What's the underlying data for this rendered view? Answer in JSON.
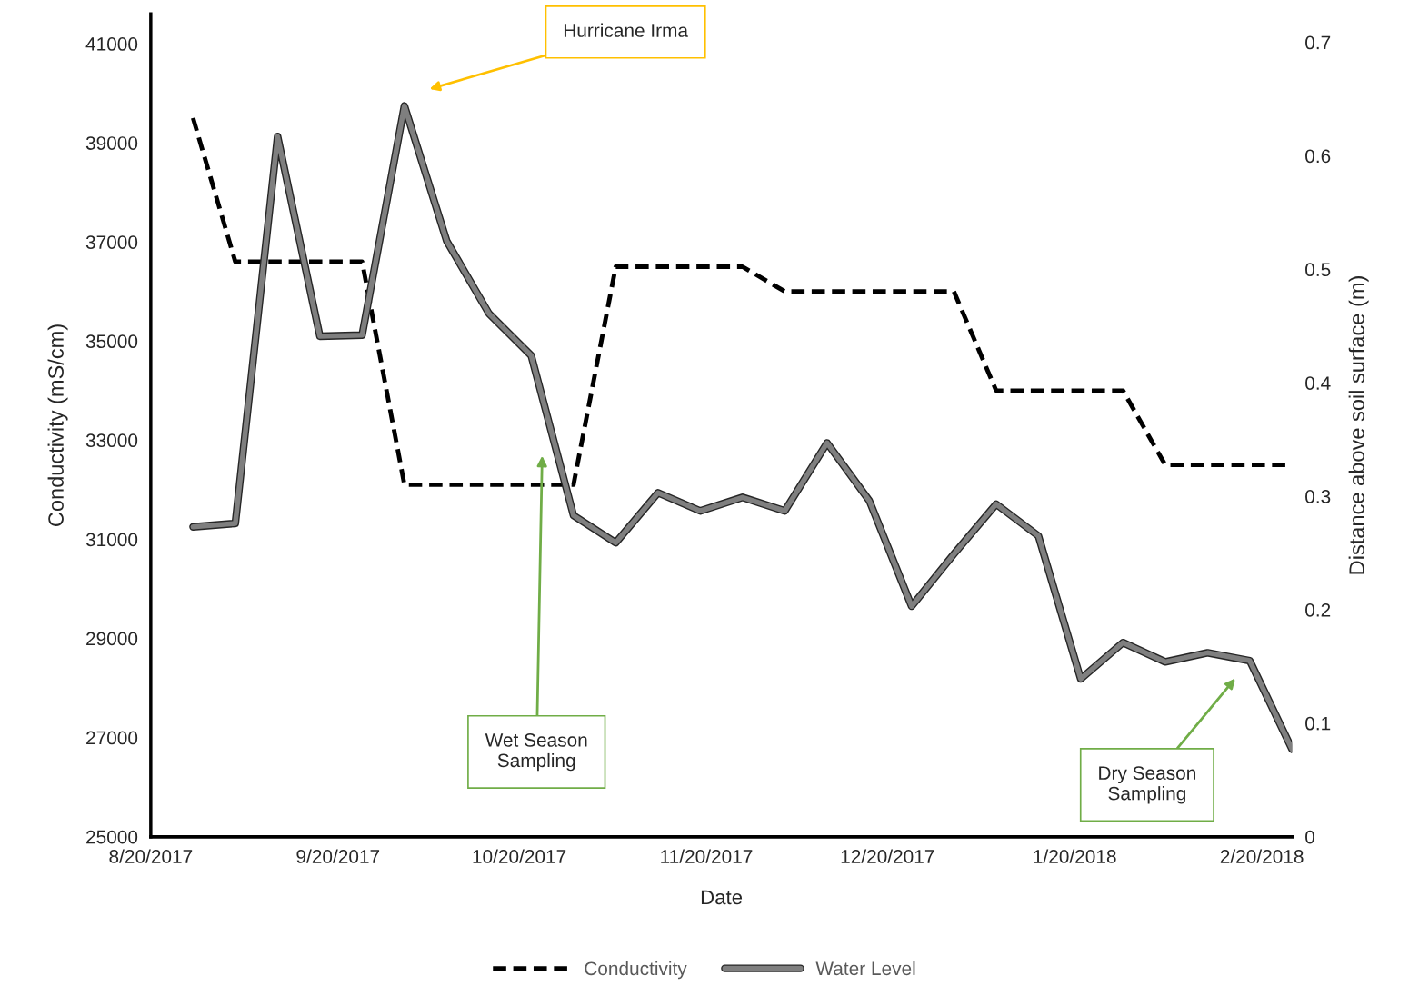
{
  "chart_data": {
    "type": "line",
    "xlabel": "Date",
    "ylabel": "Conductivity (mS/cm)",
    "y2label": "Distance above soil surface (m)",
    "xlim": [
      "2017-08-20",
      "2018-02-25"
    ],
    "xticks": [
      {
        "value": "2017-08-20",
        "label": "8/20/2017"
      },
      {
        "value": "2017-09-20",
        "label": "9/20/2017"
      },
      {
        "value": "2017-10-20",
        "label": "10/20/2017"
      },
      {
        "value": "2017-11-20",
        "label": "11/20/2017"
      },
      {
        "value": "2017-12-20",
        "label": "12/20/2017"
      },
      {
        "value": "2018-01-20",
        "label": "1/20/2018"
      },
      {
        "value": "2018-02-20",
        "label": "2/20/2018"
      }
    ],
    "ylim": [
      25000,
      41600
    ],
    "yticks": [
      25000,
      27000,
      29000,
      31000,
      33000,
      35000,
      37000,
      39000,
      41000
    ],
    "y2lim": [
      0,
      0.725
    ],
    "y2ticks": [
      0,
      0.1,
      0.2,
      0.3,
      0.4,
      0.5,
      0.6,
      0.7
    ],
    "grid": false,
    "legend": "bottom",
    "series": [
      {
        "name": "Conductivity",
        "color": "#000000",
        "line_style": "dashed",
        "x": [
          "2017-08-27",
          "2017-09-03",
          "2017-09-24",
          "2017-10-01",
          "2017-10-29",
          "2017-11-05",
          "2017-11-26",
          "2017-12-03",
          "2017-12-31",
          "2018-01-07",
          "2018-01-28",
          "2018-02-04",
          "2018-02-24"
        ],
        "values": [
          39500,
          36600,
          36600,
          32100,
          32100,
          36500,
          36500,
          36000,
          36000,
          34000,
          34000,
          32500,
          32500
        ]
      },
      {
        "name": "Water Level",
        "color": "#7f7f7f",
        "line_style": "solid",
        "axis": "y2",
        "x": [
          "2017-08-27",
          "2017-09-03",
          "2017-09-10",
          "2017-09-17",
          "2017-09-24",
          "2017-10-01",
          "2017-10-08",
          "2017-10-15",
          "2017-10-22",
          "2017-10-29",
          "2017-11-05",
          "2017-11-12",
          "2017-11-19",
          "2017-11-26",
          "2017-12-03",
          "2017-12-10",
          "2017-12-17",
          "2017-12-24",
          "2017-12-31",
          "2018-01-07",
          "2018-01-14",
          "2018-01-21",
          "2018-01-28",
          "2018-02-04",
          "2018-02-11",
          "2018-02-18",
          "2018-02-25"
        ],
        "values": [
          0.273,
          0.276,
          0.617,
          0.441,
          0.442,
          0.644,
          0.525,
          0.461,
          0.424,
          0.283,
          0.259,
          0.303,
          0.287,
          0.299,
          0.287,
          0.347,
          0.296,
          0.203,
          0.249,
          0.293,
          0.265,
          0.139,
          0.171,
          0.154,
          0.162,
          0.155,
          0.077
        ]
      }
    ],
    "annotations": [
      "Hurricane Irma",
      "Wet Season\nSampling",
      "Dry Season\nSampling"
    ]
  }
}
